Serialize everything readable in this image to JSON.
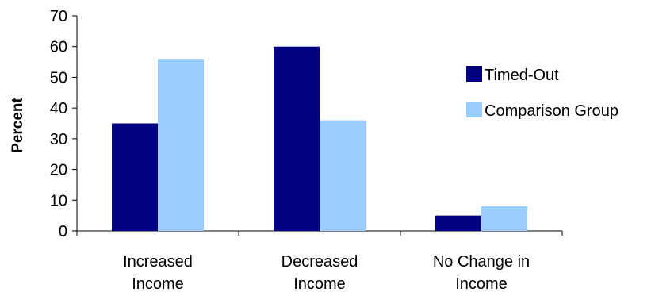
{
  "chart_data": {
    "type": "bar",
    "title": "",
    "xlabel": "",
    "ylabel": "Percent",
    "ylim": [
      0,
      70
    ],
    "yticks": [
      0,
      10,
      20,
      30,
      40,
      50,
      60,
      70
    ],
    "grid": false,
    "legend_position": "right",
    "categories": [
      [
        "Increased",
        "Income"
      ],
      [
        "Decreased",
        "Income"
      ],
      [
        "No Change in",
        "Income"
      ]
    ],
    "series": [
      {
        "name": "Timed-Out",
        "color": "#000080",
        "values": [
          35,
          60,
          5
        ]
      },
      {
        "name": "Comparison Group",
        "color": "#99CCFF",
        "values": [
          56,
          36,
          8
        ]
      }
    ]
  }
}
